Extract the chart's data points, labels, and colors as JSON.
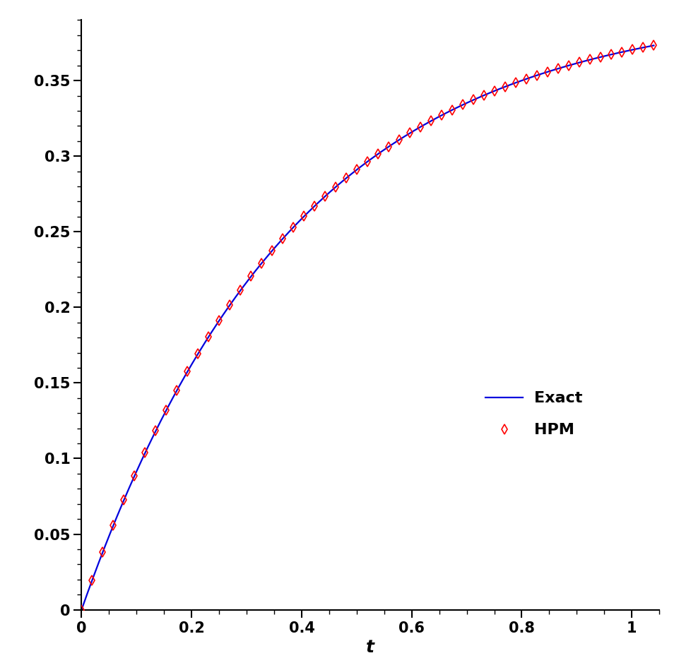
{
  "title": "",
  "xlabel": "t",
  "ylabel": "",
  "xlim": [
    0,
    1.05
  ],
  "ylim": [
    0,
    0.39
  ],
  "yticks": [
    0,
    0.05,
    0.1,
    0.15,
    0.2,
    0.25,
    0.3,
    0.35
  ],
  "xticks": [
    0,
    0.2,
    0.4,
    0.6,
    0.8,
    1.0
  ],
  "exact_color": "#0000dd",
  "hpm_color": "#ff0000",
  "background_color": "#ffffff",
  "legend_labels": [
    "Exact",
    "HPM"
  ],
  "n_exact": 1000,
  "n_hpm": 55,
  "figsize": [
    9.62,
    9.49
  ],
  "dpi": 100,
  "linewidth": 1.6,
  "marker": "d",
  "markersize": 7,
  "C": 0.4,
  "a": 2.6
}
